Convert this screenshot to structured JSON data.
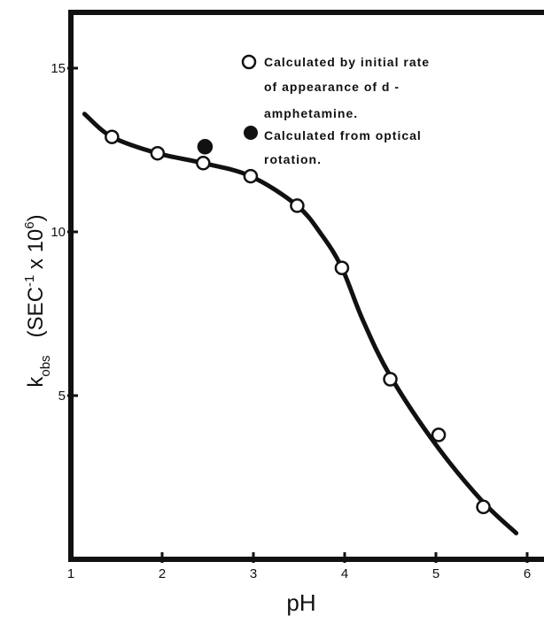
{
  "chart_data": {
    "type": "scatter",
    "xlabel": "pH",
    "ylabel": {
      "k": "k",
      "k_sub": "obs",
      "unit_open": "(SEC",
      "unit_sup": "-1",
      "unit_mid": " x 10",
      "unit_sup2": "6",
      "unit_close": ")"
    },
    "xlim": [
      1,
      6
    ],
    "ylim": [
      0,
      17
    ],
    "x_ticks": [
      "1",
      "2",
      "3",
      "4",
      "5",
      "6"
    ],
    "y_ticks": [
      "5",
      "10",
      "15"
    ],
    "grid": false,
    "legend_position": "top-right",
    "legend": [
      {
        "marker": "open-circle",
        "lines": [
          "Calculated  by  initial  rate",
          "of appearance  of  d -",
          "amphetamine."
        ]
      },
      {
        "marker": "filled-circle",
        "lines": [
          "Calculated  from  optical",
          "rotation."
        ]
      }
    ],
    "series": [
      {
        "name": "Calculated by initial rate of appearance of d-amphetamine.",
        "marker": "open-circle",
        "x": [
          1.45,
          1.95,
          2.45,
          2.97,
          3.48,
          3.97,
          4.5,
          5.03,
          5.52
        ],
        "y": [
          12.9,
          12.4,
          12.1,
          11.7,
          10.8,
          8.9,
          5.5,
          3.8,
          1.6
        ]
      },
      {
        "name": "Calculated from optical rotation.",
        "marker": "filled-circle",
        "x": [
          2.47
        ],
        "y": [
          12.6
        ]
      }
    ],
    "fit_curve": {
      "x": [
        1.15,
        1.45,
        1.95,
        2.45,
        2.97,
        3.48,
        3.75,
        3.97,
        4.2,
        4.5,
        5.0,
        5.5,
        5.88
      ],
      "y": [
        13.6,
        12.9,
        12.4,
        12.1,
        11.7,
        10.8,
        9.9,
        8.9,
        7.3,
        5.6,
        3.5,
        1.8,
        0.8
      ]
    }
  }
}
